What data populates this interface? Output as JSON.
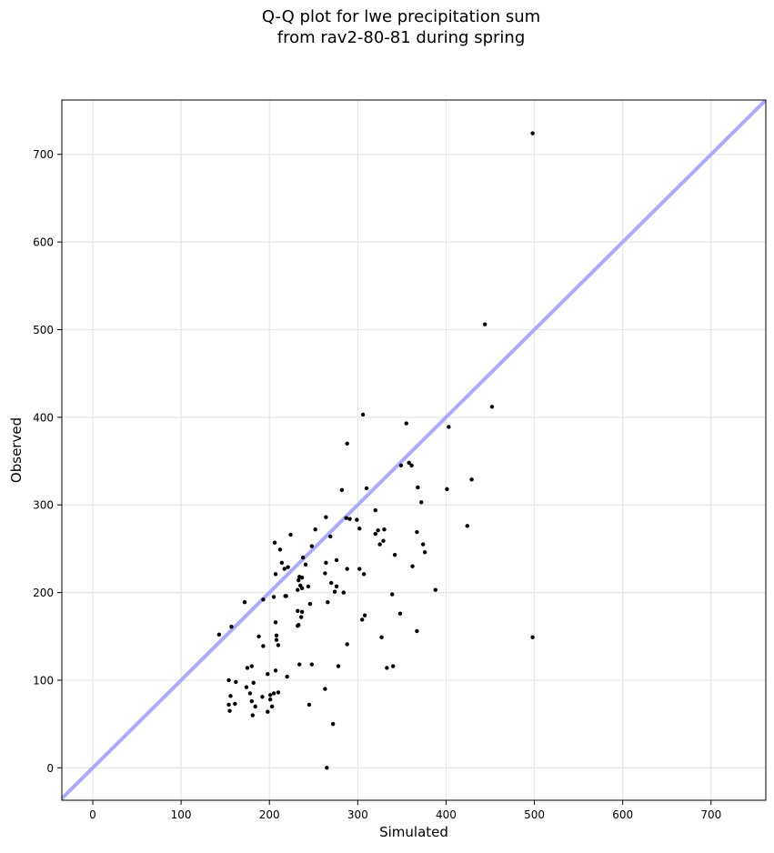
{
  "chart_data": {
    "type": "scatter",
    "title_line1": "Q-Q plot for lwe precipitation sum",
    "title_line2": "from rav2-80-81 during spring",
    "xlabel": "Simulated",
    "ylabel": "Observed",
    "xlim": [
      -35,
      762
    ],
    "ylim": [
      -37,
      762
    ],
    "x_ticks": [
      0,
      100,
      200,
      300,
      400,
      500,
      600,
      700
    ],
    "y_ticks": [
      0,
      100,
      200,
      300,
      400,
      500,
      600,
      700
    ],
    "grid": true,
    "reference_line": {
      "kind": "y=x",
      "color": "#aaaaff"
    },
    "point_color": "#000000",
    "points": [
      [
        265,
        0
      ],
      [
        272,
        50
      ],
      [
        245,
        72
      ],
      [
        263,
        90
      ],
      [
        198,
        64
      ],
      [
        203,
        70
      ],
      [
        181,
        60
      ],
      [
        184,
        70
      ],
      [
        155,
        65
      ],
      [
        154,
        72
      ],
      [
        161,
        73
      ],
      [
        180,
        76
      ],
      [
        192,
        81
      ],
      [
        201,
        78
      ],
      [
        156,
        82
      ],
      [
        178,
        85
      ],
      [
        201,
        83
      ],
      [
        205,
        85
      ],
      [
        210,
        86
      ],
      [
        174,
        92
      ],
      [
        182,
        97
      ],
      [
        162,
        98
      ],
      [
        154,
        100
      ],
      [
        198,
        107
      ],
      [
        207,
        111
      ],
      [
        175,
        114
      ],
      [
        180,
        116
      ],
      [
        220,
        104
      ],
      [
        234,
        118
      ],
      [
        248,
        118
      ],
      [
        278,
        116
      ],
      [
        333,
        114
      ],
      [
        340,
        116
      ],
      [
        210,
        140
      ],
      [
        193,
        139
      ],
      [
        188,
        150
      ],
      [
        208,
        146
      ],
      [
        208,
        151
      ],
      [
        288,
        141
      ],
      [
        327,
        149
      ],
      [
        498,
        149
      ],
      [
        367,
        156
      ],
      [
        143,
        152
      ],
      [
        157,
        161
      ],
      [
        207,
        166
      ],
      [
        232,
        162
      ],
      [
        236,
        172
      ],
      [
        233,
        163
      ],
      [
        237,
        178
      ],
      [
        232,
        179
      ],
      [
        305,
        169
      ],
      [
        308,
        174
      ],
      [
        348,
        176
      ],
      [
        172,
        189
      ],
      [
        193,
        192
      ],
      [
        205,
        195
      ],
      [
        218,
        196
      ],
      [
        266,
        189
      ],
      [
        246,
        187
      ],
      [
        219,
        196
      ],
      [
        232,
        203
      ],
      [
        237,
        205
      ],
      [
        235,
        208
      ],
      [
        244,
        207
      ],
      [
        274,
        201
      ],
      [
        284,
        200
      ],
      [
        339,
        198
      ],
      [
        388,
        203
      ],
      [
        217,
        227
      ],
      [
        221,
        229
      ],
      [
        214,
        234
      ],
      [
        241,
        232
      ],
      [
        263,
        222
      ],
      [
        264,
        234
      ],
      [
        270,
        211
      ],
      [
        276,
        207
      ],
      [
        207,
        221
      ],
      [
        233,
        214
      ],
      [
        234,
        218
      ],
      [
        237,
        217
      ],
      [
        248,
        253
      ],
      [
        238,
        240
      ],
      [
        276,
        237
      ],
      [
        288,
        227
      ],
      [
        302,
        227
      ],
      [
        307,
        221
      ],
      [
        362,
        230
      ],
      [
        212,
        249
      ],
      [
        206,
        257
      ],
      [
        224,
        266
      ],
      [
        252,
        272
      ],
      [
        269,
        264
      ],
      [
        264,
        286
      ],
      [
        287,
        285
      ],
      [
        291,
        284
      ],
      [
        299,
        283
      ],
      [
        302,
        273
      ],
      [
        320,
        267
      ],
      [
        323,
        271
      ],
      [
        325,
        255
      ],
      [
        329,
        259
      ],
      [
        330,
        272
      ],
      [
        342,
        243
      ],
      [
        374,
        255
      ],
      [
        376,
        246
      ],
      [
        367,
        269
      ],
      [
        424,
        276
      ],
      [
        429,
        329
      ],
      [
        401,
        318
      ],
      [
        372,
        303
      ],
      [
        368,
        320
      ],
      [
        282,
        317
      ],
      [
        310,
        319
      ],
      [
        320,
        294
      ],
      [
        349,
        345
      ],
      [
        358,
        348
      ],
      [
        361,
        345
      ],
      [
        288,
        370
      ],
      [
        306,
        403
      ],
      [
        355,
        393
      ],
      [
        403,
        389
      ],
      [
        452,
        412
      ],
      [
        444,
        506
      ],
      [
        498,
        724
      ]
    ]
  }
}
